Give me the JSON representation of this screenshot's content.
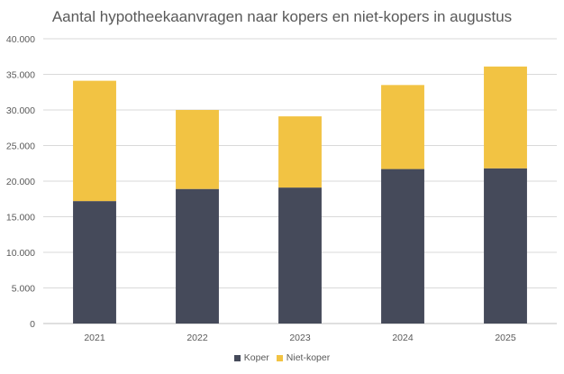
{
  "chart_data": {
    "type": "bar",
    "stacked": true,
    "title": "Aantal hypotheekaanvragen naar kopers en niet-kopers in augustus",
    "xlabel": "",
    "ylabel": "",
    "categories": [
      "2021",
      "2022",
      "2023",
      "2024",
      "2025"
    ],
    "series": [
      {
        "name": "Koper",
        "color": "#454a5a",
        "values": [
          17200,
          18900,
          19100,
          21700,
          21800
        ]
      },
      {
        "name": "Niet-koper",
        "color": "#f2c343",
        "values": [
          16900,
          11100,
          10000,
          11800,
          14300
        ]
      }
    ],
    "ylim": [
      0,
      40000
    ],
    "yticks": [
      "0",
      "5.000",
      "10.000",
      "15.000",
      "20.000",
      "25.000",
      "30.000",
      "35.000",
      "40.000"
    ],
    "grid": true,
    "legend_position": "bottom"
  }
}
